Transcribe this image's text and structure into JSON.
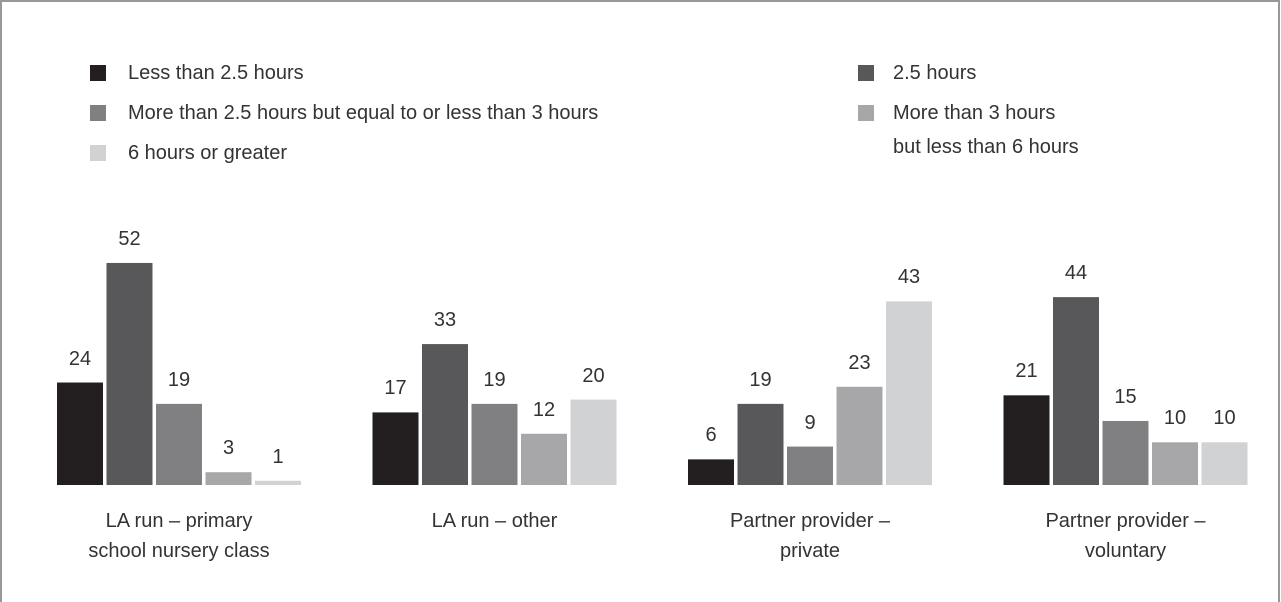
{
  "chart_data": {
    "type": "bar",
    "categories": [
      "LA run – primary\nschool nursery class",
      "LA run – other",
      "Partner provider –\nprivate",
      "Partner provider –\nvoluntary"
    ],
    "series": [
      {
        "name": "Less than 2.5 hours",
        "color": "#231f20",
        "values": [
          24,
          17,
          6,
          21
        ]
      },
      {
        "name": "2.5 hours",
        "color": "#58585a",
        "values": [
          52,
          33,
          19,
          44
        ]
      },
      {
        "name": "More than 2.5 hours but equal to or less than 3 hours",
        "color": "#808082",
        "values": [
          19,
          19,
          9,
          15
        ]
      },
      {
        "name": "More than 3 hours\nbut less than 6 hours",
        "color": "#a7a7a9",
        "values": [
          3,
          12,
          23,
          10
        ]
      },
      {
        "name": "6 hours or greater",
        "color": "#d1d2d4",
        "values": [
          1,
          20,
          43,
          10
        ]
      }
    ]
  }
}
